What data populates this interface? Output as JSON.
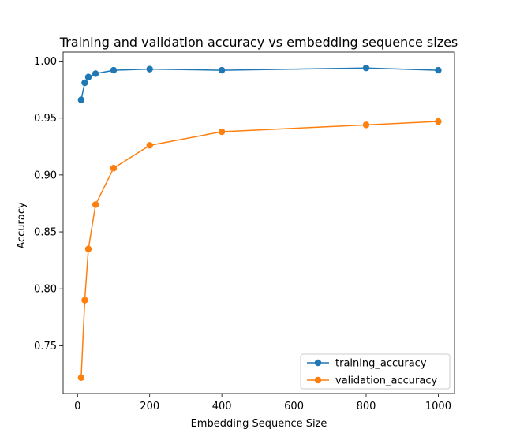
{
  "chart_data": {
    "type": "line",
    "title": "Training and validation accuracy vs embedding sequence sizes",
    "xlabel": "Embedding Sequence Size",
    "ylabel": "Accuracy",
    "xlim": [
      -40,
      1045
    ],
    "ylim": [
      0.708,
      1.008
    ],
    "x_ticks": [
      0,
      200,
      400,
      600,
      800,
      1000
    ],
    "x_tick_labels": [
      "0",
      "200",
      "400",
      "600",
      "800",
      "1000"
    ],
    "y_ticks": [
      0.75,
      0.8,
      0.85,
      0.9,
      0.95,
      1.0
    ],
    "y_tick_labels": [
      "0.75",
      "0.80",
      "0.85",
      "0.90",
      "0.95",
      "1.00"
    ],
    "grid": false,
    "legend_position": "lower-right",
    "x": [
      10,
      20,
      30,
      50,
      100,
      200,
      400,
      800,
      1000
    ],
    "series": [
      {
        "name": "training_accuracy",
        "color": "#1f77b4",
        "marker": "circle",
        "values": [
          0.966,
          0.981,
          0.986,
          0.989,
          0.992,
          0.993,
          0.992,
          0.994,
          0.992
        ]
      },
      {
        "name": "validation_accuracy",
        "color": "#ff7f0e",
        "marker": "circle",
        "values": [
          0.722,
          0.79,
          0.835,
          0.874,
          0.906,
          0.926,
          0.938,
          0.944,
          0.947
        ]
      }
    ]
  }
}
